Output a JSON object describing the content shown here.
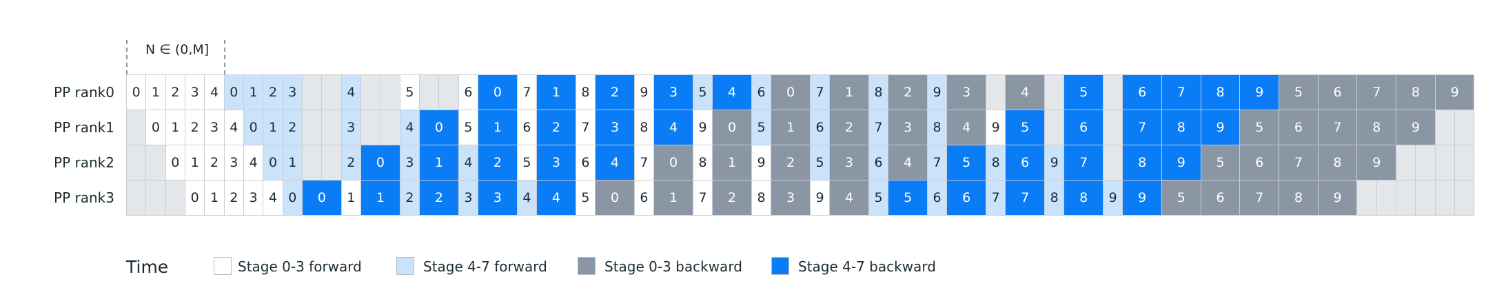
{
  "n_range_label": "N ∈ (0,M]",
  "time_label": "Time",
  "rows": [
    "PP rank0",
    "PP rank1",
    "PP rank2",
    "PP rank3"
  ],
  "colors": {
    "sf": "#ffffff",
    "lf": "#cbe2fb",
    "gb": "#8a96a4",
    "bb": "#0a7cf5",
    "empty": "#e4e7ea"
  },
  "legend": [
    {
      "key": "sf",
      "label": "Stage 0-3 forward"
    },
    {
      "key": "lf",
      "label": "Stage 4-7 forward"
    },
    {
      "key": "gb",
      "label": "Stage 0-3 backward"
    },
    {
      "key": "bb",
      "label": "Stage 4-7 backward"
    }
  ],
  "schedule": [
    [
      "sf0",
      "sf1",
      "sf2",
      "sf3",
      "sf4",
      "lf0",
      "lf1",
      "lf2",
      "lf3",
      "e",
      "e",
      "lf4",
      "e",
      "e",
      "sf5",
      "e",
      "e",
      "sf6",
      "bb0",
      "bb0",
      "sf7",
      "bb1",
      "bb1",
      "sf8",
      "bb2",
      "bb2",
      "sf9",
      "bb3",
      "bb3",
      "lf5",
      "bb4",
      "bb4",
      "lf6",
      "gb0",
      "gb0",
      "lf7",
      "gb1",
      "gb1",
      "lf8",
      "gb2",
      "gb2",
      "lf9",
      "gb3",
      "gb3",
      "e",
      "gb4",
      "gb4",
      "e",
      "bb5",
      "bb5",
      "e",
      "bb6",
      "bb6",
      "bb7",
      "bb7",
      "bb8",
      "bb8",
      "bb9",
      "bb9",
      "gb5",
      "gb5",
      "gb6",
      "gb6",
      "gb7",
      "gb7",
      "gb8",
      "gb8",
      "gb9",
      "gb9"
    ],
    [
      "e",
      "sf0",
      "sf1",
      "sf2",
      "sf3",
      "sf4",
      "lf0",
      "lf1",
      "lf2",
      "e",
      "e",
      "lf3",
      "e",
      "e",
      "lf4",
      "bb0",
      "bb0",
      "sf5",
      "bb1",
      "bb1",
      "sf6",
      "bb2",
      "bb2",
      "sf7",
      "bb3",
      "bb3",
      "sf8",
      "bb4",
      "bb4",
      "sf9",
      "gb0",
      "gb0",
      "lf5",
      "gb1",
      "gb1",
      "lf6",
      "gb2",
      "gb2",
      "lf7",
      "gb3",
      "gb3",
      "lf8",
      "gb4",
      "gb4",
      "sf9",
      "bb5",
      "bb5",
      "e",
      "bb6",
      "bb6",
      "e",
      "bb7",
      "bb7",
      "bb8",
      "bb8",
      "bb9",
      "bb9",
      "gb5",
      "gb5",
      "gb6",
      "gb6",
      "gb7",
      "gb7",
      "gb8",
      "gb8",
      "gb9",
      "gb9",
      "e",
      "e"
    ],
    [
      "e",
      "e",
      "sf0",
      "sf1",
      "sf2",
      "sf3",
      "sf4",
      "lf0",
      "lf1",
      "e",
      "e",
      "lf2",
      "bb0",
      "bb0",
      "lf3",
      "bb1",
      "bb1",
      "lf4",
      "bb2",
      "bb2",
      "sf5",
      "bb3",
      "bb3",
      "sf6",
      "bb4",
      "bb4",
      "sf7",
      "gb0",
      "gb0",
      "sf8",
      "gb1",
      "gb1",
      "sf9",
      "gb2",
      "gb2",
      "lf5",
      "gb3",
      "gb3",
      "lf6",
      "gb4",
      "gb4",
      "lf7",
      "bb5",
      "bb5",
      "lf8",
      "bb6",
      "bb6",
      "lf9",
      "bb7",
      "bb7",
      "e",
      "bb8",
      "bb8",
      "bb9",
      "bb9",
      "gb5",
      "gb5",
      "gb6",
      "gb6",
      "gb7",
      "gb7",
      "gb8",
      "gb8",
      "gb9",
      "gb9",
      "e",
      "e",
      "e",
      "e"
    ],
    [
      "e",
      "e",
      "e",
      "sf0",
      "sf1",
      "sf2",
      "sf3",
      "sf4",
      "lf0",
      "bb0",
      "bb0",
      "sf1",
      "bb1",
      "bb1",
      "lf2",
      "bb2",
      "bb2",
      "lf3",
      "bb3",
      "bb3",
      "lf4",
      "bb4",
      "bb4",
      "sf5",
      "gb0",
      "gb0",
      "sf6",
      "gb1",
      "gb1",
      "sf7",
      "gb2",
      "gb2",
      "sf8",
      "gb3",
      "gb3",
      "sf9",
      "gb4",
      "gb4",
      "lf5",
      "bb5",
      "bb5",
      "lf6",
      "bb6",
      "bb6",
      "lf7",
      "bb7",
      "bb7",
      "lf8",
      "bb8",
      "bb8",
      "lf9",
      "bb9",
      "bb9",
      "gb5",
      "gb5",
      "gb6",
      "gb6",
      "gb7",
      "gb7",
      "gb8",
      "gb8",
      "gb9",
      "gb9",
      "e",
      "e",
      "e",
      "e",
      "e",
      "e"
    ]
  ]
}
